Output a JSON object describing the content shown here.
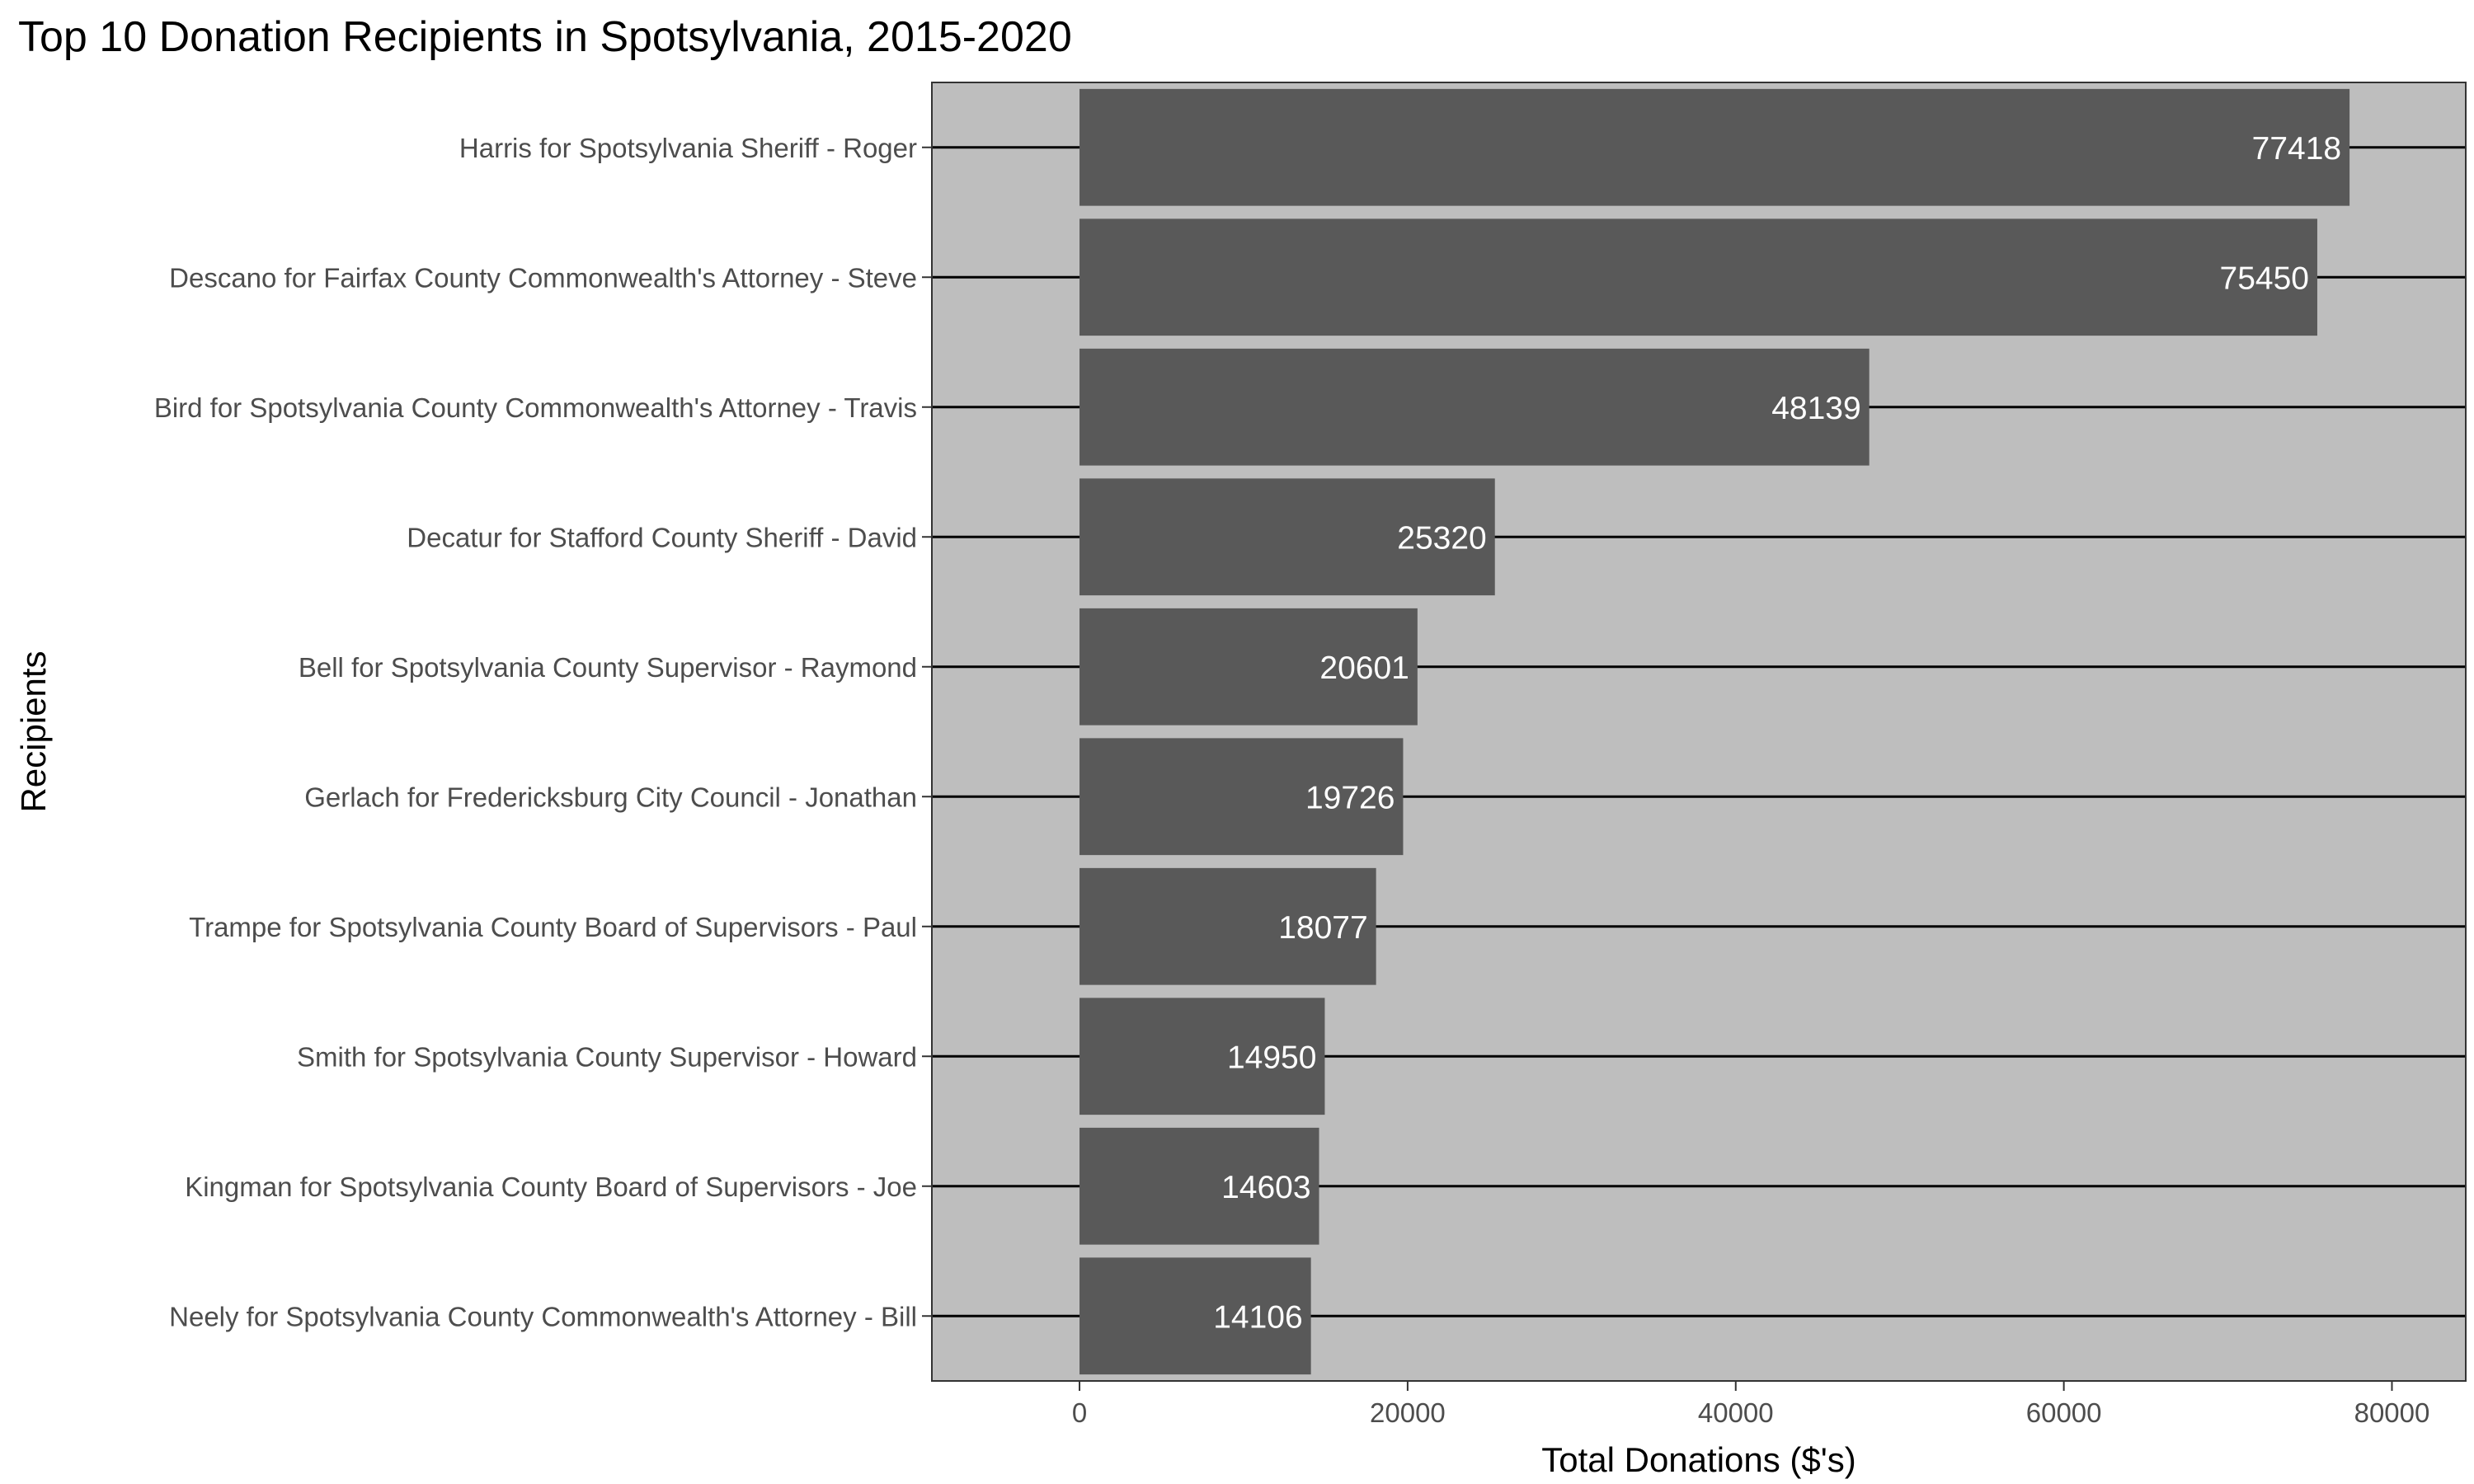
{
  "chart_data": {
    "type": "bar",
    "orientation": "horizontal",
    "title": "Top 10 Donation Recipients in Spotsylvania, 2015-2020",
    "xlabel": "Total Donations ($'s)",
    "ylabel": "Recipients",
    "xlim": [
      -9000,
      84500
    ],
    "x_ticks": [
      0,
      20000,
      40000,
      60000,
      80000
    ],
    "grid": true,
    "categories": [
      "Harris for Spotsylvania Sheriff - Roger",
      "Descano for Fairfax County Commonwealth's Attorney - Steve",
      "Bird for Spotsylvania County Commonwealth's Attorney - Travis",
      "Decatur for Stafford County Sheriff - David",
      "Bell for Spotsylvania County Supervisor - Raymond",
      "Gerlach for Fredericksburg City Council - Jonathan",
      "Trampe for Spotsylvania County Board of Supervisors - Paul",
      "Smith for Spotsylvania County Supervisor - Howard",
      "Kingman for Spotsylvania County Board of Supervisors - Joe",
      "Neely for Spotsylvania County Commonwealth's Attorney - Bill"
    ],
    "values": [
      77418,
      75450,
      48139,
      25320,
      20601,
      19726,
      18077,
      14950,
      14603,
      14106
    ],
    "data_labels": [
      "77418",
      "75450",
      "48139",
      "25320",
      "20601",
      "19726",
      "18077",
      "14950",
      "14603",
      "14106"
    ],
    "colors": {
      "panel": "#bebebe",
      "bar": "#595959",
      "gridline": "#000000",
      "data_label": "#ffffff",
      "axis_text": "#4d4d4d"
    }
  }
}
